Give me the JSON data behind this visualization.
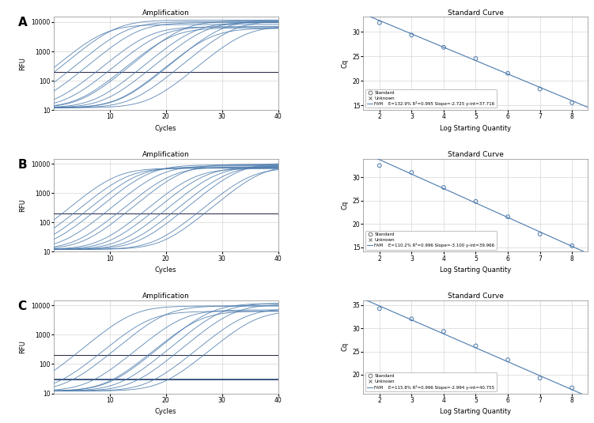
{
  "row_labels": [
    "A",
    "B",
    "C"
  ],
  "amp_title": "Amplification",
  "sc_title": "Standard Curve",
  "amp_xlabel": "Cycles",
  "amp_ylabel": "RFU",
  "sc_xlabel": "Log Starting Quantity",
  "sc_ylabel": "Cq",
  "background_color": "#ffffff",
  "line_color": "#4a7aad",
  "dark_line_color": "#1a3a6a",
  "grid_color": "#cccccc",
  "amp_xlim": [
    0,
    40
  ],
  "amp_xticks": [
    10,
    20,
    30,
    40
  ],
  "amp_ylim_log": [
    10,
    15000
  ],
  "sc_xlim": [
    1.5,
    8.5
  ],
  "sc_xticks": [
    2,
    3,
    4,
    5,
    6,
    7,
    8
  ],
  "panels": [
    {
      "sc_x": [
        2,
        3,
        4,
        5,
        6,
        7,
        8
      ],
      "sc_y": [
        31.8,
        29.3,
        26.8,
        24.5,
        21.5,
        18.3,
        15.5
      ],
      "sc_ylim": [
        14,
        33
      ],
      "sc_yticks": [
        15,
        20,
        25,
        30
      ],
      "slope": -2.725,
      "intercept": 37.716,
      "legend_line": "FAM    E=132.9% R²=0.995 Slope=-2.725 y-int=37.716",
      "amp_n_curves": 14,
      "amp_starts": [
        9,
        11,
        13,
        15,
        17,
        19,
        21,
        23,
        25,
        27,
        28,
        30,
        32,
        34
      ],
      "amp_threshold": 200,
      "amp_has_baseline": false
    },
    {
      "sc_x": [
        2,
        3,
        4,
        5,
        6,
        7,
        8
      ],
      "sc_y": [
        32.5,
        31.0,
        27.8,
        24.8,
        21.5,
        17.8,
        15.3
      ],
      "sc_ylim": [
        14,
        34
      ],
      "sc_yticks": [
        15,
        20,
        25,
        30
      ],
      "slope": -3.1,
      "intercept": 39.966,
      "legend_line": "FAM    E=110.2% R²=0.996 Slope=-3.100 y-int=39.966",
      "amp_n_curves": 14,
      "amp_starts": [
        11,
        13,
        15,
        17,
        19,
        21,
        23,
        25,
        27,
        29,
        31,
        33,
        35,
        37
      ],
      "amp_threshold": 200,
      "amp_has_baseline": false
    },
    {
      "sc_x": [
        2,
        3,
        4,
        5,
        6,
        7,
        8
      ],
      "sc_y": [
        34.2,
        32.0,
        29.3,
        26.2,
        23.2,
        19.3,
        17.2
      ],
      "sc_ylim": [
        16,
        36
      ],
      "sc_yticks": [
        20,
        25,
        30,
        35
      ],
      "slope": -2.994,
      "intercept": 40.755,
      "legend_line": "FAM    E=115.8% R²=0.996 Slope=-2.994 y-int=40.755",
      "amp_n_curves": 10,
      "amp_starts": [
        14,
        17,
        20,
        23,
        26,
        28,
        30,
        32,
        34,
        36
      ],
      "amp_threshold": 200,
      "amp_has_baseline": true
    }
  ]
}
